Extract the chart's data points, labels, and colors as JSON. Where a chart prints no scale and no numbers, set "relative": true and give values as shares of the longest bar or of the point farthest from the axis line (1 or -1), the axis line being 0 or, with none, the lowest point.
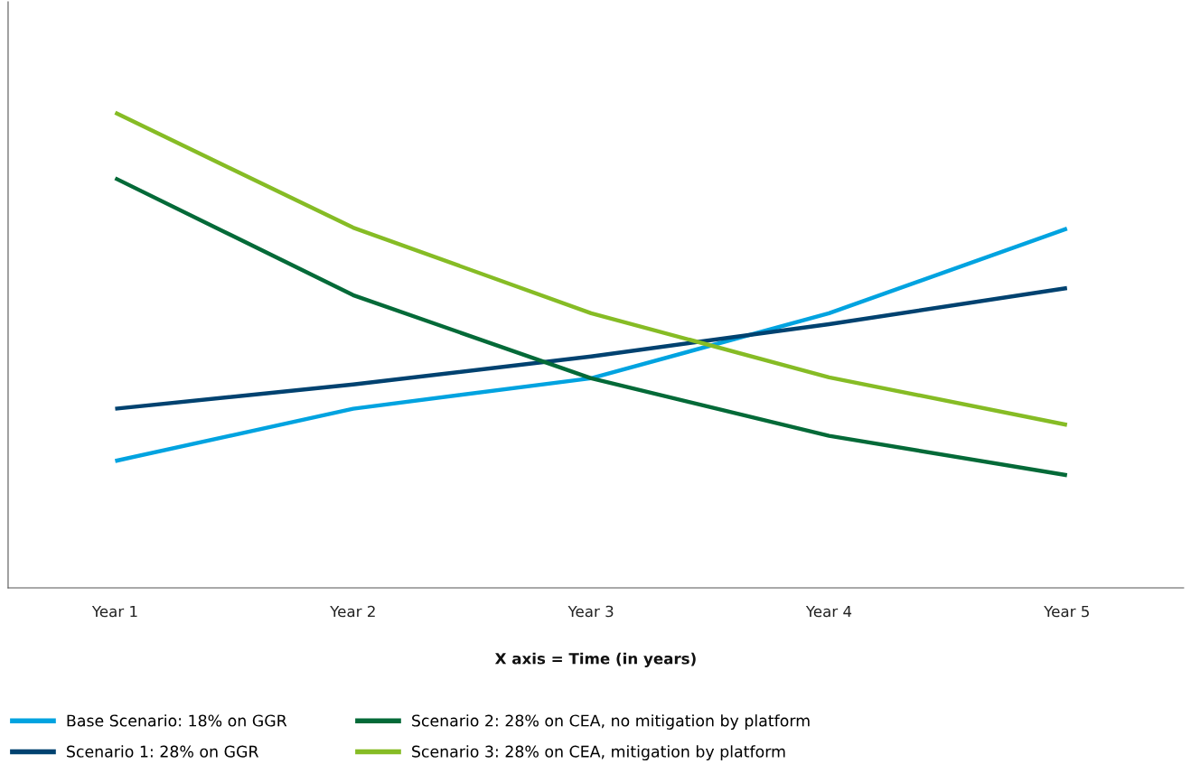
{
  "chart_data": {
    "type": "line",
    "relative": true,
    "xlabel": "X axis = Time (in years)",
    "categories": [
      "Year 1",
      "Year 2",
      "Year 3",
      "Year 4",
      "Year 5"
    ],
    "series": [
      {
        "name": "Base Scenario: 18% on GGR",
        "color": "#00a3e0",
        "values": [
          0.267,
          0.377,
          0.441,
          0.578,
          0.756
        ]
      },
      {
        "name": "Scenario 1: 28% on GGR",
        "color": "#004270",
        "values": [
          0.377,
          0.428,
          0.487,
          0.555,
          0.631
        ]
      },
      {
        "name": "Scenario 2: 28% on CEA, no mitigation by platform",
        "color": "#046a38",
        "values": [
          0.862,
          0.616,
          0.441,
          0.32,
          0.237
        ]
      },
      {
        "name": "Scenario 3: 28% on CEA, mitigation by platform",
        "color": "#86bc25",
        "values": [
          1,
          0.758,
          0.578,
          0.443,
          0.343
        ]
      }
    ],
    "legend": "bottom",
    "grid": false,
    "marker": "none",
    "line_style": "solid"
  }
}
